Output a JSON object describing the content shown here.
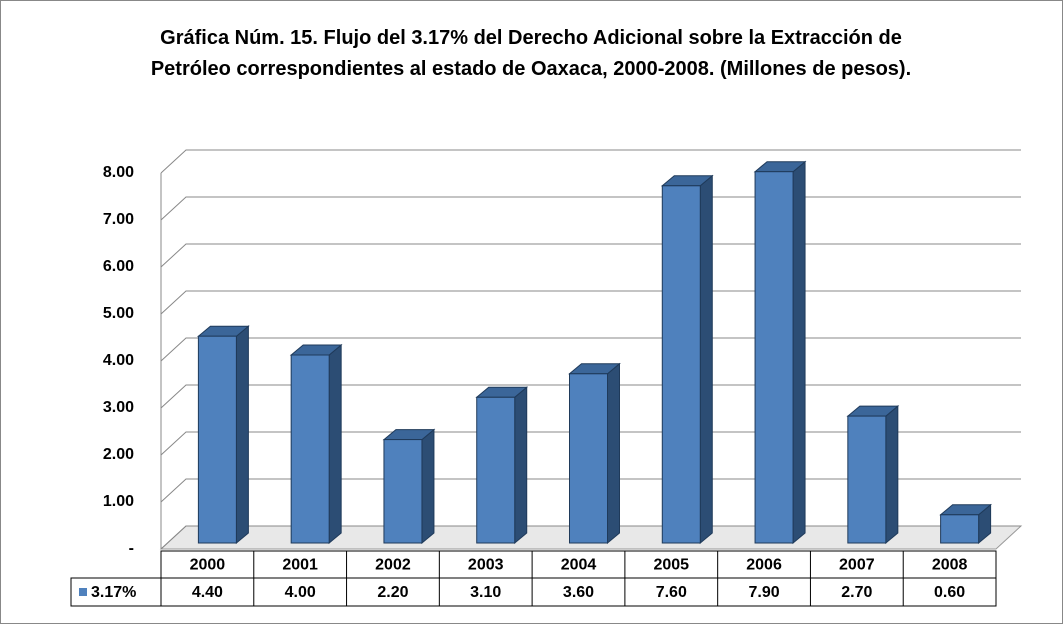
{
  "chart_data": {
    "type": "bar3d",
    "title": "Gráfica Núm. 15. Flujo del 3.17% del Derecho Adicional sobre la Extracción de Petróleo correspondientes al estado de Oaxaca, 2000-2008. (Millones de pesos).",
    "categories": [
      "2000",
      "2001",
      "2002",
      "2003",
      "2004",
      "2005",
      "2006",
      "2007",
      "2008"
    ],
    "series": [
      {
        "name": "3.17%",
        "color": "#4f81bd",
        "values": [
          4.4,
          4.0,
          2.2,
          3.1,
          3.6,
          7.6,
          7.9,
          2.7,
          0.6
        ],
        "value_labels": [
          "4.40",
          "4.00",
          "2.20",
          "3.10",
          "3.60",
          "7.60",
          "7.90",
          "2.70",
          "0.60"
        ]
      }
    ],
    "ylim": [
      0,
      8
    ],
    "yticks": [
      {
        "value": 0,
        "label": "-"
      },
      {
        "value": 1,
        "label": "1.00"
      },
      {
        "value": 2,
        "label": "2.00"
      },
      {
        "value": 3,
        "label": "3.00"
      },
      {
        "value": 4,
        "label": "4.00"
      },
      {
        "value": 5,
        "label": "5.00"
      },
      {
        "value": 6,
        "label": "6.00"
      },
      {
        "value": 7,
        "label": "7.00"
      },
      {
        "value": 8,
        "label": "8.00"
      }
    ],
    "grid": true,
    "legend": "table"
  }
}
